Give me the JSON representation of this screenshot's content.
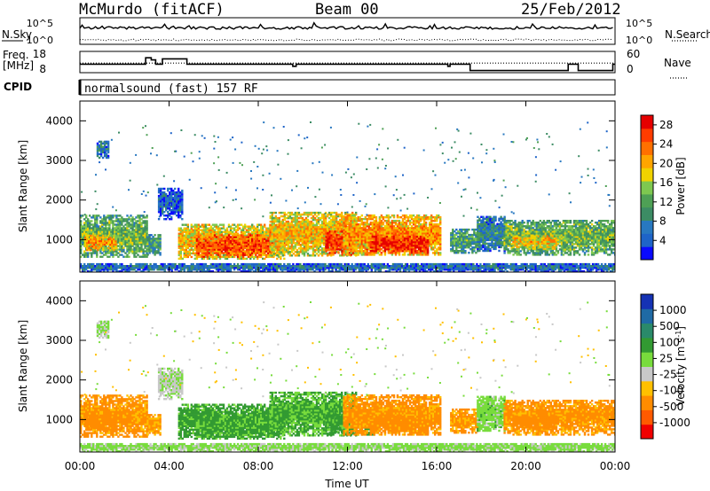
{
  "header": {
    "station": "McMurdo (fitACF)",
    "beam": "Beam 00",
    "date": "25/Feb/2012"
  },
  "aux_panels": {
    "nsky_label": "N.Sky",
    "nsearch_label": "N.Search",
    "power_ticks_left": [
      "10^5",
      "10^0"
    ],
    "power_ticks_right": [
      "10^5",
      "10^0"
    ],
    "freq_label": "Freq.",
    "freq_unit": "[MHz]",
    "freq_ticks": [
      "18",
      "8"
    ],
    "nave_label": "Nave",
    "nave_ticks": [
      "60",
      "0"
    ],
    "cpid_label": "CPID",
    "cpid_text": "normalsound (fast) 157 RF",
    "freq_steps": [
      [
        0,
        12
      ],
      [
        2.95,
        15
      ],
      [
        3.2,
        14
      ],
      [
        3.4,
        12
      ],
      [
        3.7,
        14.5
      ],
      [
        4.4,
        14.5
      ],
      [
        4.8,
        12
      ],
      [
        9.4,
        12
      ],
      [
        9.55,
        11
      ],
      [
        9.7,
        12
      ],
      [
        16.4,
        12
      ],
      [
        16.5,
        11
      ],
      [
        16.6,
        12
      ],
      [
        17.5,
        9
      ],
      [
        21.8,
        9
      ],
      [
        21.9,
        12
      ],
      [
        22.3,
        12
      ],
      [
        22.35,
        9
      ],
      [
        23.8,
        9
      ],
      [
        23.9,
        12
      ],
      [
        24,
        12
      ]
    ],
    "nave_level": 0.45
  },
  "colors": {
    "power": [
      "#0a0aff",
      "#1e64c8",
      "#2878c0",
      "#3c8c64",
      "#4ea055",
      "#7ec850",
      "#f0d200",
      "#ffa500",
      "#ff7000",
      "#ff3c00",
      "#e60000"
    ],
    "velocity": [
      "#f00000",
      "#ff5a00",
      "#ff8c00",
      "#ffc000",
      "#c8c8c8",
      "#78dc3c",
      "#329a32",
      "#2a8a6a",
      "#1f6aa5",
      "#1532b4"
    ]
  },
  "chart_data": [
    {
      "type": "heatmap",
      "name": "power",
      "xlabel": "Time UT",
      "ylabel": "Slant Range [km]",
      "x_ticks": [
        "00:00",
        "04:00",
        "08:00",
        "12:00",
        "16:00",
        "20:00",
        "00:00"
      ],
      "y_ticks": [
        "1000",
        "2000",
        "3000",
        "4000"
      ],
      "xlim_hours": [
        0,
        24
      ],
      "ylim_km": [
        180,
        4500
      ],
      "colorbar_label": "Power [dB]",
      "colorbar_ticks": [
        "4",
        "8",
        "12",
        "16",
        "20",
        "24",
        "28"
      ],
      "colorbar_range": [
        0,
        30
      ],
      "mean_power_by_hour": [
        {
          "hour": 0.5,
          "value": 18
        },
        {
          "hour": 2.5,
          "value": 14
        },
        {
          "hour": 6.0,
          "value": 22
        },
        {
          "hour": 9.0,
          "value": 22
        },
        {
          "hour": 12.0,
          "value": 25
        },
        {
          "hour": 14.0,
          "value": 22
        },
        {
          "hour": 18.0,
          "value": 10
        },
        {
          "hour": 20.0,
          "value": 16
        },
        {
          "hour": 22.5,
          "value": 14
        }
      ]
    },
    {
      "type": "heatmap",
      "name": "velocity",
      "xlabel": "Time UT",
      "ylabel": "Slant Range [km]",
      "x_ticks": [
        "00:00",
        "04:00",
        "08:00",
        "12:00",
        "16:00",
        "20:00",
        "00:00"
      ],
      "y_ticks": [
        "1000",
        "2000",
        "3000",
        "4000"
      ],
      "xlim_hours": [
        0,
        24
      ],
      "ylim_km": [
        180,
        4500
      ],
      "colorbar_label": "Velocity [m s",
      "colorbar_unit_sup": "-1",
      "colorbar_unit_close": "]",
      "colorbar_ticks": [
        "1000",
        "500",
        "100",
        "25",
        "-25",
        "-100",
        "-500",
        "-1000"
      ],
      "mean_velocity_by_hour": [
        {
          "hour": 1.5,
          "value": -120
        },
        {
          "hour": 7.0,
          "value": 150
        },
        {
          "hour": 11.5,
          "value": 200
        },
        {
          "hour": 14.0,
          "value": -150
        },
        {
          "hour": 20.5,
          "value": -120
        }
      ]
    }
  ],
  "echo_bands": [
    {
      "t0": 0.0,
      "t1": 3.0,
      "r0": 550,
      "r1": 1600,
      "p": 14,
      "v": -150
    },
    {
      "t0": 0.2,
      "t1": 1.6,
      "r0": 720,
      "r1": 1100,
      "p": 22,
      "v": -250
    },
    {
      "t0": 0.75,
      "t1": 1.3,
      "r0": 3050,
      "r1": 3500,
      "p": 8,
      "v": 30
    },
    {
      "t0": 3.0,
      "t1": 3.6,
      "r0": 600,
      "r1": 1100,
      "p": 12,
      "v": -120
    },
    {
      "t0": 3.5,
      "t1": 4.6,
      "r0": 1500,
      "r1": 2300,
      "p": 6,
      "v": 20
    },
    {
      "t0": 4.4,
      "t1": 9.2,
      "r0": 500,
      "r1": 1400,
      "p": 20,
      "v": 150
    },
    {
      "t0": 5.2,
      "t1": 8.6,
      "r0": 550,
      "r1": 1100,
      "p": 26,
      "v": 130
    },
    {
      "t0": 8.5,
      "t1": 12.4,
      "r0": 580,
      "r1": 1700,
      "p": 20,
      "v": 120
    },
    {
      "t0": 11.0,
      "t1": 13.2,
      "r0": 600,
      "r1": 1200,
      "p": 27,
      "v": 180
    },
    {
      "t0": 11.8,
      "t1": 16.2,
      "r0": 600,
      "r1": 1600,
      "p": 22,
      "v": -150
    },
    {
      "t0": 13.0,
      "t1": 15.6,
      "r0": 650,
      "r1": 1100,
      "p": 28,
      "v": -200
    },
    {
      "t0": 16.6,
      "t1": 17.8,
      "r0": 650,
      "r1": 1250,
      "p": 12,
      "v": -130
    },
    {
      "t0": 17.8,
      "t1": 19.0,
      "r0": 700,
      "r1": 1600,
      "p": 9,
      "v": 60
    },
    {
      "t0": 19.0,
      "t1": 24.0,
      "r0": 600,
      "r1": 1500,
      "p": 14,
      "v": -140
    },
    {
      "t0": 19.4,
      "t1": 21.4,
      "r0": 750,
      "r1": 1100,
      "p": 20,
      "v": -250
    },
    {
      "t0": 0.0,
      "t1": 24.0,
      "r0": 180,
      "r1": 400,
      "p": 7,
      "v": 40
    }
  ]
}
